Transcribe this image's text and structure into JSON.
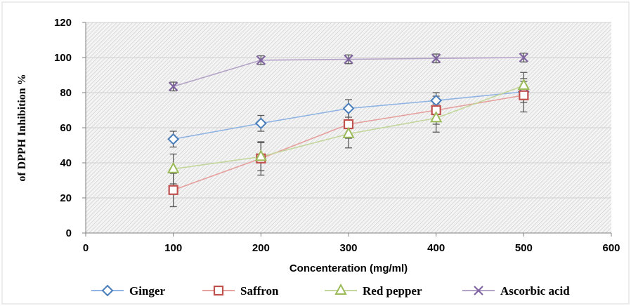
{
  "chart_data": {
    "type": "line",
    "xlabel": "Concenteration (mg/ml)",
    "ylabel": "of DPPH Inhibition %",
    "xlim": [
      0,
      600
    ],
    "ylim": [
      0,
      120
    ],
    "x_ticks": [
      "0",
      "100",
      "200",
      "300",
      "400",
      "500",
      "600"
    ],
    "y_ticks": [
      "0",
      "20",
      "40",
      "60",
      "80",
      "100",
      "120"
    ],
    "grid": true,
    "legend_position": "bottom",
    "x": [
      100,
      200,
      300,
      400,
      500
    ],
    "series": [
      {
        "name": "Ginger",
        "marker": "diamond",
        "color": "#4a7ebb",
        "line_color": "#8fb4e3",
        "values": [
          53.5,
          62.5,
          71,
          75.5,
          80.5
        ],
        "errors": [
          4.5,
          4.5,
          5,
          4.5,
          6
        ]
      },
      {
        "name": "Saffron",
        "marker": "square",
        "color": "#c0504d",
        "line_color": "#e6a09e",
        "values": [
          24.5,
          42.5,
          62,
          70,
          78.5
        ],
        "errors": [
          9.5,
          9.5,
          8,
          8,
          9.5
        ]
      },
      {
        "name": "Red pepper",
        "marker": "triangle",
        "color": "#9bbb59",
        "line_color": "#c3d69b",
        "values": [
          36.5,
          43.5,
          56.5,
          65.5,
          84
        ],
        "errors": [
          8.5,
          8,
          8,
          8,
          7.5
        ]
      },
      {
        "name": "Ascorbic acid",
        "marker": "x",
        "color": "#8064a2",
        "line_color": "#b3a2c7",
        "values": [
          83.5,
          98.5,
          99,
          99.5,
          100
        ],
        "errors": [
          2.5,
          2.5,
          2.5,
          2.5,
          2.5
        ]
      }
    ]
  }
}
